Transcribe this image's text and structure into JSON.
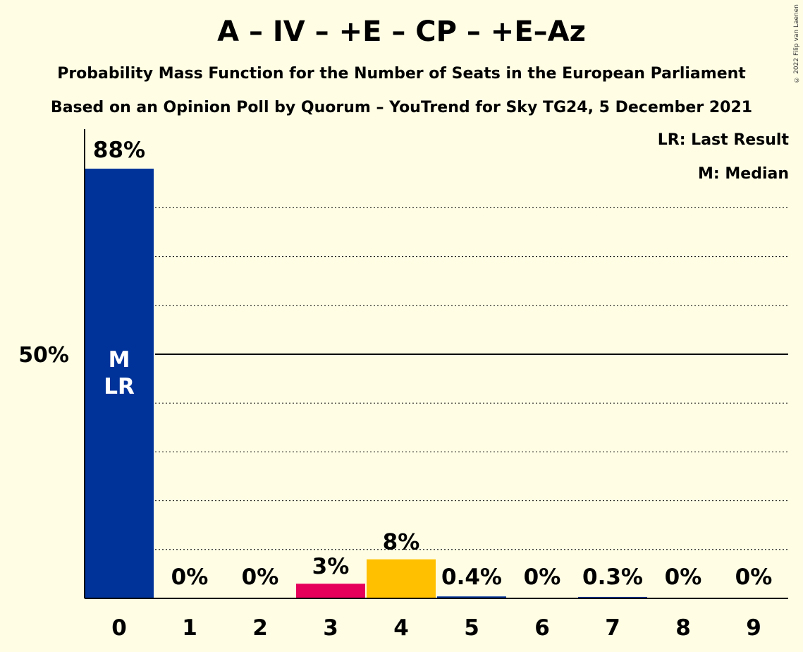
{
  "header": {
    "title": "A – IV – +E – CP – +E–Az",
    "subtitle1": "Probability Mass Function for the Number of Seats in the European Parliament",
    "subtitle2": "Based on an Opinion Poll by Quorum – YouTrend for Sky TG24, 5 December 2021",
    "copyright": "© 2022 Filip van Laenen"
  },
  "legend": {
    "lr": "LR: Last Result",
    "m": "M: Median"
  },
  "chart_data": {
    "type": "bar",
    "categories": [
      "0",
      "1",
      "2",
      "3",
      "4",
      "5",
      "6",
      "7",
      "8",
      "9"
    ],
    "values": [
      88,
      0,
      0,
      3,
      8,
      0.4,
      0,
      0.3,
      0,
      0
    ],
    "data_labels": [
      "88%",
      "0%",
      "0%",
      "3%",
      "8%",
      "0.4%",
      "0%",
      "0.3%",
      "0%",
      "0%"
    ],
    "bar_colors": [
      "#003399",
      "#003399",
      "#003399",
      "#E6005C",
      "#FFC000",
      "#003399",
      "#003399",
      "#003399",
      "#003399",
      "#003399"
    ],
    "ylim": [
      0,
      96
    ],
    "ytick_label": "50%",
    "ytick_value": 50,
    "grid_lines": [
      10,
      20,
      30,
      40,
      50,
      60,
      70,
      80
    ],
    "bar_markers": {
      "0": [
        "M",
        "LR"
      ]
    },
    "title": "A – IV – +E – CP – +E–Az"
  }
}
